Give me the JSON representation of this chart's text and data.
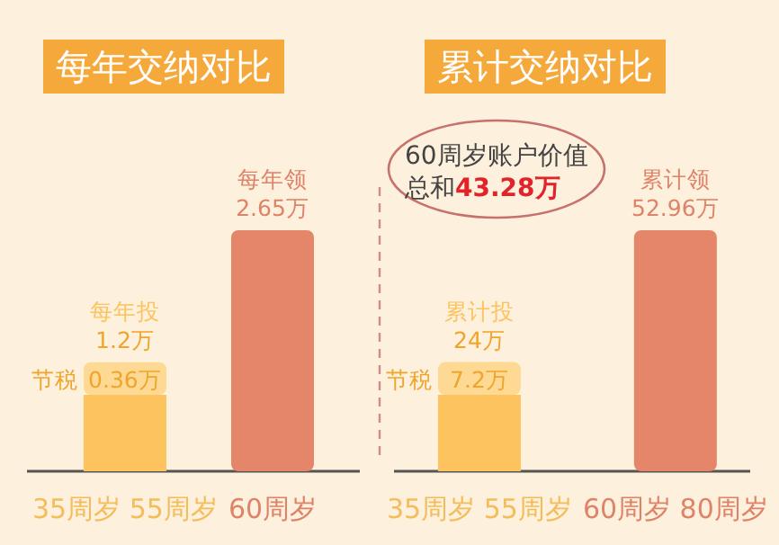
{
  "chart_data": [
    {
      "type": "bar",
      "stacked": true,
      "title": "每年交纳对比",
      "categories": [
        "35周岁 55周岁",
        "60周岁"
      ],
      "series": [
        {
          "name": "每年投",
          "color": "#fcc35e",
          "values": [
            0.84,
            null
          ]
        },
        {
          "name": "节税",
          "color": "#fdd993",
          "values": [
            0.36,
            null
          ],
          "value_labels": [
            "0.36万",
            null
          ]
        },
        {
          "name": "每年领",
          "color": "#e5866b",
          "values": [
            null,
            2.65
          ],
          "value_labels": [
            null,
            "2.65万"
          ]
        }
      ],
      "totals": [
        "1.2万",
        null
      ]
    },
    {
      "type": "bar",
      "stacked": true,
      "title": "累计交纳对比",
      "categories": [
        "35周岁 55周岁",
        "60周岁 80周岁"
      ],
      "series": [
        {
          "name": "累计投",
          "color": "#fcc35e",
          "values": [
            16.8,
            null
          ]
        },
        {
          "name": "节税",
          "color": "#fdd993",
          "values": [
            7.2,
            null
          ],
          "value_labels": [
            "7.2万",
            null
          ]
        },
        {
          "name": "累计领",
          "color": "#e5866b",
          "values": [
            null,
            52.96
          ],
          "value_labels": [
            null,
            "52.96万"
          ]
        }
      ],
      "totals": [
        "24万",
        null
      ],
      "annotations": [
        "60周岁账户价值总和43.28万"
      ]
    }
  ]
}
